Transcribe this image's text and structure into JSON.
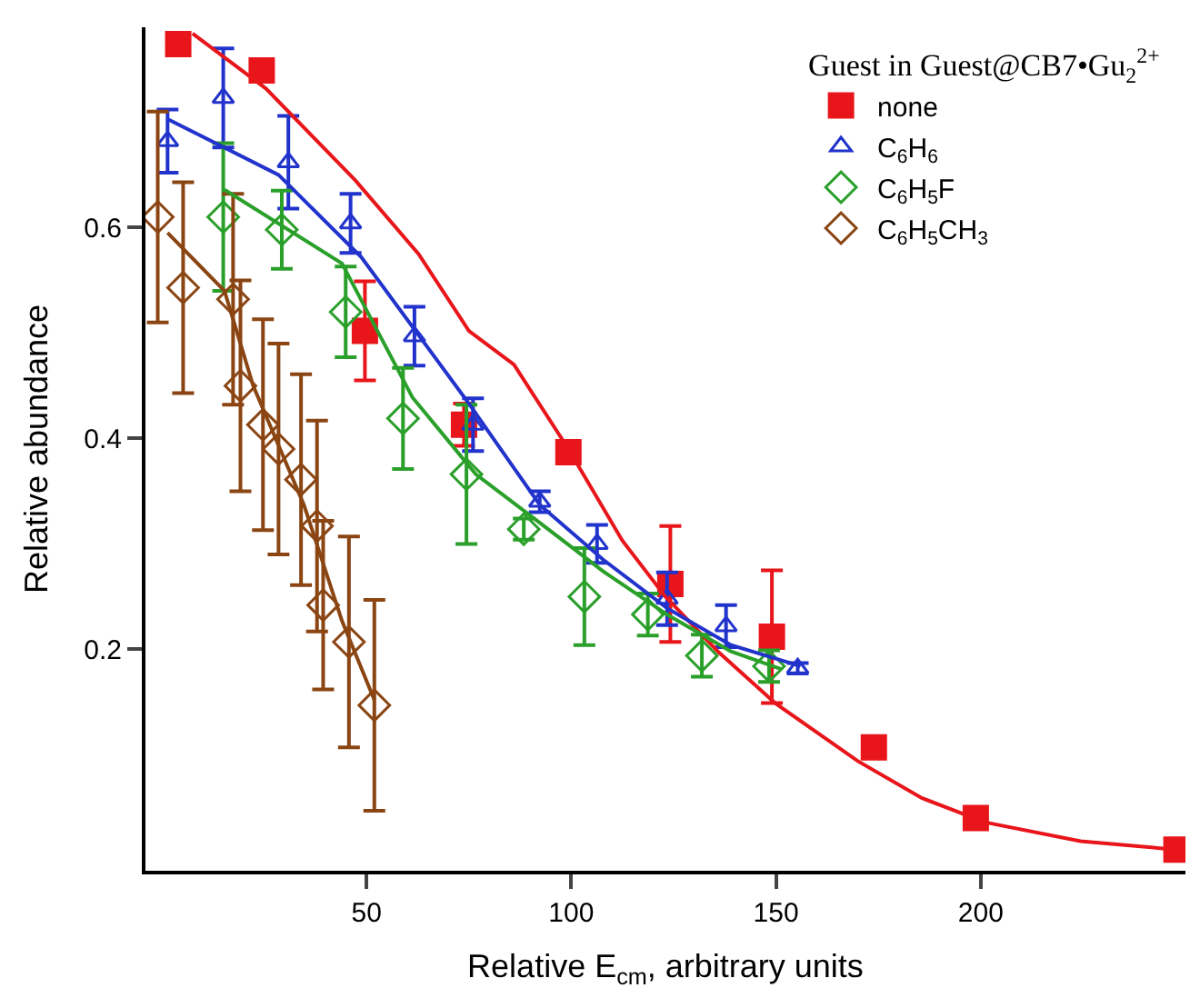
{
  "chart_data": {
    "type": "scatter",
    "xlabel": "Relative E$_{cm}$, arbitrary units",
    "ylabel": "Relative abundance",
    "legend_title": "Guest in Guest@CB7•Gu$_{2}$$^{2+}$",
    "legend": "top right",
    "grid": false,
    "xlim": [
      -4,
      250
    ],
    "ylim": [
      -0.01,
      0.79
    ],
    "xticks": [
      50,
      100,
      150,
      200
    ],
    "yticks": [
      0.2,
      0.4,
      0.6
    ],
    "series": [
      {
        "name": "none",
        "color": "#e8161b",
        "marker": "square",
        "x": [
          4,
          24.4,
          49.6,
          73.8,
          99.3,
          124.2,
          149,
          173.9,
          198.8,
          247.8
        ],
        "values": [
          0.774,
          0.749,
          0.502,
          0.413,
          0.387,
          0.262,
          0.212,
          0.107,
          0.04,
          0.01
        ],
        "errors": [
          null,
          null,
          0.047,
          0.02,
          null,
          0.055,
          0.063,
          null,
          null,
          null
        ]
      },
      {
        "name": "C$_{6}$H$_{6}$",
        "color": "#2233cc",
        "marker": "triangle",
        "x": [
          1.4,
          15,
          30.9,
          46.1,
          61.7,
          76,
          92.3,
          106.3,
          123.4,
          137.8,
          155.3
        ],
        "values": [
          0.682,
          0.723,
          0.662,
          0.604,
          0.497,
          0.413,
          0.34,
          0.3,
          0.248,
          0.222,
          0.182
        ],
        "errors": [
          0.03,
          0.047,
          0.044,
          0.028,
          0.028,
          0.025,
          0.01,
          0.018,
          0.025,
          0.02,
          0.005
        ]
      },
      {
        "name": "C$_{6}$H$_{5}$F",
        "color": "#2aa02a",
        "marker": "diamond",
        "x": [
          15,
          29.3,
          44.9,
          58.9,
          74.4,
          88.4,
          103.2,
          118.7,
          131.9,
          148.3
        ],
        "values": [
          0.61,
          0.598,
          0.52,
          0.419,
          0.366,
          0.314,
          0.25,
          0.233,
          0.194,
          0.184
        ],
        "errors": [
          0.07,
          0.037,
          0.043,
          0.048,
          0.066,
          0.01,
          0.046,
          0.02,
          0.02,
          0.015
        ]
      },
      {
        "name": "C$_{6}$H$_{5}$CH$_{3}$",
        "color": "#8b4513",
        "marker": "diamond",
        "x": [
          -1,
          5.2,
          17.4,
          19.2,
          24.7,
          28.5,
          34,
          37.9,
          39.4,
          45.7,
          51.9
        ],
        "values": [
          0.61,
          0.543,
          0.532,
          0.45,
          0.413,
          0.39,
          0.361,
          0.317,
          0.242,
          0.207,
          0.147
        ],
        "errors": [
          0.1,
          0.1,
          0.1,
          0.1,
          0.1,
          0.1,
          0.1,
          0.1,
          0.08,
          0.1,
          0.1
        ]
      },
      {
        "type": "line",
        "color": "#e8161b",
        "marker": "none",
        "x": [
          7.5,
          25.4,
          47.2,
          62.7,
          75,
          86,
          99.3,
          112.5,
          123,
          135.8,
          149.8,
          170,
          185.6,
          201,
          224.4,
          247.8
        ],
        "values": [
          0.784,
          0.732,
          0.645,
          0.575,
          0.502,
          0.47,
          0.39,
          0.303,
          0.25,
          0.198,
          0.149,
          0.094,
          0.059,
          0.036,
          0.018,
          0.01
        ]
      },
      {
        "type": "line",
        "color": "#2233cc",
        "marker": "none",
        "x": [
          1.4,
          28.5,
          48.7,
          75,
          92.3,
          107.8,
          123.4,
          139,
          156
        ],
        "values": [
          0.703,
          0.65,
          0.572,
          0.433,
          0.337,
          0.285,
          0.239,
          0.204,
          0.184
        ]
      },
      {
        "type": "line",
        "color": "#2aa02a",
        "marker": "none",
        "x": [
          15.3,
          44,
          61.2,
          76.7,
          92.3,
          107.8,
          123.4,
          139,
          151.4
        ],
        "values": [
          0.636,
          0.566,
          0.439,
          0.366,
          0.32,
          0.274,
          0.233,
          0.198,
          0.181
        ]
      },
      {
        "type": "line",
        "color": "#8b4513",
        "marker": "none",
        "x": [
          1.4,
          15.3,
          22.3,
          34.7,
          44,
          51.9
        ],
        "values": [
          0.595,
          0.54,
          0.45,
          0.337,
          0.227,
          0.152
        ]
      }
    ]
  }
}
